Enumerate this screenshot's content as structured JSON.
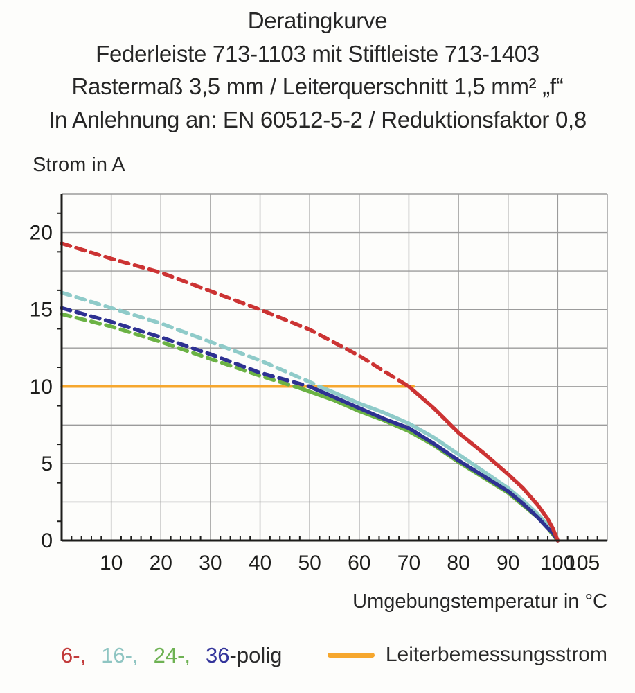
{
  "header": {
    "line1": "Deratingkurve",
    "line2": "Federleiste 713-1103 mit Stiftleiste 713-1403",
    "line3": "Rastermaß 3,5 mm / Leiterquerschnitt 1,5 mm² „f“",
    "line4": "In Anlehnung an: EN 60512-5-2 / Reduktionsfaktor 0,8"
  },
  "axis_titles": {
    "y": "Strom in A",
    "x": "Umgebungstemperatur in °C"
  },
  "chart_data": {
    "type": "line",
    "title": "Deratingkurve",
    "xlabel": "Umgebungstemperatur in °C",
    "ylabel": "Strom in A",
    "xlim": [
      0,
      110
    ],
    "ylim": [
      0,
      22.5
    ],
    "grid": true,
    "x_gridlines": [
      10,
      20,
      30,
      40,
      50,
      60,
      70,
      80,
      90,
      100,
      110
    ],
    "y_gridlines": [
      2.5,
      5,
      7.5,
      10,
      12.5,
      15,
      17.5,
      20,
      22.5
    ],
    "x_tick_labels": [
      10,
      20,
      30,
      40,
      50,
      60,
      70,
      80,
      90,
      100,
      105
    ],
    "y_tick_labels": [
      0,
      5,
      10,
      15,
      20
    ],
    "x_minor_step": 2,
    "y_minor_step": 1.25,
    "colors": {
      "grid": "#9b9b9b",
      "axis": "#1d1d1b"
    },
    "reference_line": {
      "name": "Leiterbemessungsstrom",
      "color": "#f6a72e",
      "y": 10,
      "x_start": 0,
      "x_end": 71
    },
    "series": [
      {
        "name": "24-polig",
        "color": "#6bb244",
        "dash_until": 48,
        "points": [
          [
            0,
            14.7
          ],
          [
            10,
            13.9
          ],
          [
            20,
            12.9
          ],
          [
            30,
            11.8
          ],
          [
            40,
            10.7
          ],
          [
            48,
            9.9
          ],
          [
            55,
            9.1
          ],
          [
            60,
            8.4
          ],
          [
            65,
            7.8
          ],
          [
            70,
            7.1
          ],
          [
            75,
            6.2
          ],
          [
            80,
            5.1
          ],
          [
            85,
            4.1
          ],
          [
            90,
            3.1
          ],
          [
            93,
            2.3
          ],
          [
            96,
            1.5
          ],
          [
            98,
            0.8
          ],
          [
            99,
            0.4
          ],
          [
            100,
            0
          ]
        ]
      },
      {
        "name": "16-polig",
        "color": "#8fcbc9",
        "dash_until": 52,
        "points": [
          [
            0,
            16.1
          ],
          [
            10,
            15.1
          ],
          [
            20,
            14.1
          ],
          [
            30,
            12.9
          ],
          [
            40,
            11.7
          ],
          [
            50,
            10.3
          ],
          [
            52,
            10.0
          ],
          [
            55,
            9.6
          ],
          [
            60,
            8.9
          ],
          [
            65,
            8.3
          ],
          [
            70,
            7.6
          ],
          [
            75,
            6.7
          ],
          [
            80,
            5.6
          ],
          [
            85,
            4.5
          ],
          [
            90,
            3.4
          ],
          [
            93,
            2.6
          ],
          [
            96,
            1.7
          ],
          [
            98,
            1.0
          ],
          [
            99,
            0.6
          ],
          [
            100,
            0
          ]
        ]
      },
      {
        "name": "36-polig",
        "color": "#2e3192",
        "dash_until": 50,
        "points": [
          [
            0,
            15.1
          ],
          [
            10,
            14.2
          ],
          [
            20,
            13.2
          ],
          [
            30,
            12.1
          ],
          [
            40,
            10.9
          ],
          [
            50,
            10.0
          ],
          [
            55,
            9.3
          ],
          [
            60,
            8.6
          ],
          [
            65,
            7.9
          ],
          [
            70,
            7.3
          ],
          [
            75,
            6.3
          ],
          [
            80,
            5.2
          ],
          [
            85,
            4.2
          ],
          [
            90,
            3.2
          ],
          [
            93,
            2.4
          ],
          [
            96,
            1.5
          ],
          [
            98,
            0.8
          ],
          [
            99,
            0.5
          ],
          [
            100,
            0
          ]
        ]
      },
      {
        "name": "6-polig",
        "color": "#cc3333",
        "dash_until": 70,
        "points": [
          [
            0,
            19.3
          ],
          [
            10,
            18.3
          ],
          [
            20,
            17.4
          ],
          [
            30,
            16.2
          ],
          [
            40,
            15.0
          ],
          [
            50,
            13.7
          ],
          [
            60,
            12.0
          ],
          [
            70,
            10.0
          ],
          [
            75,
            8.6
          ],
          [
            80,
            7.0
          ],
          [
            85,
            5.7
          ],
          [
            90,
            4.3
          ],
          [
            93,
            3.4
          ],
          [
            96,
            2.3
          ],
          [
            98,
            1.4
          ],
          [
            99,
            0.8
          ],
          [
            100,
            0
          ]
        ]
      }
    ]
  },
  "legend": {
    "items": [
      {
        "label": "6-,",
        "color": "#c23b3b"
      },
      {
        "label": "16-,",
        "color": "#8fc5c2"
      },
      {
        "label": "24-,",
        "color": "#6eb253"
      },
      {
        "label": "36",
        "color": "#34359b"
      },
      {
        "label": "-polig",
        "color": "#2b2b2b"
      }
    ],
    "reference_label": "Leiterbemessungsstrom"
  }
}
